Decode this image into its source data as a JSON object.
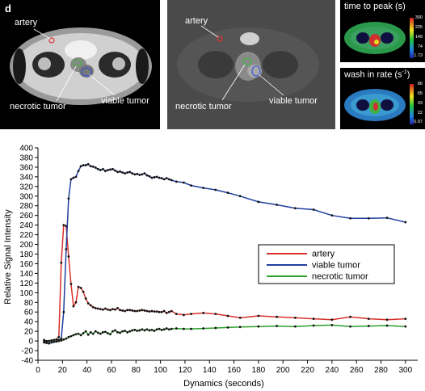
{
  "panel_letter": "d",
  "images": {
    "left": {
      "labels": {
        "artery": "artery",
        "necrotic": "necrotic tumor",
        "viable": "viable tumor"
      }
    },
    "middle": {
      "labels": {
        "artery": "artery",
        "necrotic": "necrotic tumor",
        "viable": "viable tumor"
      }
    },
    "map_top": {
      "title": "time to peak (s)",
      "colorbar_ticks": [
        "300",
        "225",
        "149",
        "74",
        "1.73"
      ]
    },
    "map_bottom": {
      "title_prefix": "wash in rate (s",
      "title_sup": "-1",
      "title_suffix": ")",
      "colorbar_ticks": [
        "86",
        "65",
        "43",
        "22",
        "0.07"
      ]
    }
  },
  "colors": {
    "artery": "#d8312b",
    "viable": "#1f3f9e",
    "necrotic": "#2aa02a",
    "points": "#111111"
  },
  "chart_data": {
    "type": "line",
    "xlabel": "Dynamics (seconds)",
    "ylabel": "Relative Signal Intensity",
    "xlim": [
      0,
      310
    ],
    "ylim": [
      -40,
      400
    ],
    "xticks": [
      0,
      20,
      40,
      60,
      80,
      100,
      120,
      140,
      160,
      180,
      200,
      220,
      240,
      260,
      280,
      300
    ],
    "yticks": [
      -40,
      -20,
      0,
      20,
      40,
      60,
      80,
      100,
      120,
      140,
      160,
      180,
      200,
      220,
      240,
      260,
      280,
      300,
      320,
      340,
      360,
      380,
      400
    ],
    "grid": false,
    "legend_position": "right",
    "series": [
      {
        "name": "artery",
        "x": [
          5,
          7,
          9,
          11,
          13,
          15,
          17,
          19,
          21,
          23,
          25,
          27,
          29,
          31,
          33,
          35,
          37,
          39,
          41,
          43,
          45,
          47,
          49,
          51,
          53,
          55,
          57,
          59,
          61,
          63,
          65,
          67,
          69,
          71,
          73,
          75,
          77,
          79,
          81,
          83,
          85,
          87,
          89,
          91,
          93,
          95,
          97,
          99,
          101,
          103,
          105,
          107,
          109,
          113,
          119,
          125,
          135,
          145,
          155,
          165,
          180,
          195,
          210,
          225,
          240,
          255,
          270,
          285,
          300
        ],
        "y": [
          2,
          0,
          0,
          1,
          2,
          3,
          8,
          162,
          240,
          238,
          175,
          118,
          72,
          80,
          112,
          110,
          102,
          88,
          78,
          74,
          70,
          68,
          67,
          66,
          65,
          67,
          65,
          64,
          66,
          65,
          68,
          64,
          63,
          62,
          64,
          64,
          63,
          62,
          62,
          63,
          64,
          63,
          62,
          61,
          62,
          61,
          61,
          60,
          60,
          62,
          58,
          60,
          62,
          56,
          54,
          56,
          58,
          56,
          52,
          48,
          52,
          50,
          48,
          46,
          44,
          50,
          46,
          44,
          46
        ]
      },
      {
        "name": "viable tumor",
        "x": [
          5,
          7,
          9,
          11,
          13,
          15,
          17,
          19,
          21,
          23,
          25,
          27,
          29,
          31,
          33,
          35,
          37,
          39,
          41,
          43,
          45,
          47,
          49,
          51,
          53,
          55,
          57,
          59,
          61,
          63,
          65,
          67,
          69,
          71,
          73,
          75,
          77,
          79,
          81,
          83,
          85,
          87,
          89,
          91,
          93,
          95,
          97,
          99,
          101,
          103,
          105,
          107,
          109,
          113,
          119,
          125,
          135,
          145,
          155,
          165,
          180,
          195,
          210,
          225,
          240,
          255,
          270,
          285,
          300
        ],
        "y": [
          -3,
          -4,
          -5,
          -3,
          -2,
          -1,
          0,
          5,
          60,
          190,
          295,
          335,
          338,
          340,
          352,
          362,
          364,
          364,
          366,
          362,
          361,
          359,
          356,
          354,
          356,
          352,
          354,
          355,
          356,
          353,
          350,
          351,
          349,
          347,
          349,
          350,
          347,
          345,
          346,
          344,
          345,
          347,
          343,
          341,
          338,
          339,
          340,
          338,
          337,
          335,
          337,
          335,
          333,
          330,
          328,
          322,
          317,
          313,
          307,
          300,
          288,
          282,
          275,
          272,
          260,
          254,
          254,
          255,
          246
        ]
      },
      {
        "name": "necrotic tumor",
        "x": [
          5,
          7,
          9,
          11,
          13,
          15,
          17,
          19,
          21,
          23,
          25,
          27,
          29,
          31,
          33,
          35,
          37,
          39,
          41,
          43,
          45,
          47,
          49,
          51,
          53,
          55,
          57,
          59,
          61,
          63,
          65,
          67,
          69,
          71,
          73,
          75,
          77,
          79,
          81,
          83,
          85,
          87,
          89,
          91,
          93,
          95,
          97,
          99,
          101,
          103,
          105,
          107,
          109,
          113,
          119,
          125,
          135,
          145,
          155,
          165,
          180,
          195,
          210,
          225,
          240,
          255,
          270,
          285,
          300
        ],
        "y": [
          0,
          -1,
          0,
          1,
          2,
          3,
          2,
          1,
          3,
          5,
          8,
          10,
          12,
          14,
          15,
          12,
          16,
          20,
          13,
          18,
          15,
          20,
          17,
          15,
          18,
          19,
          16,
          14,
          20,
          22,
          18,
          17,
          20,
          21,
          18,
          20,
          22,
          23,
          21,
          22,
          24,
          22,
          24,
          22,
          23,
          21,
          24,
          25,
          23,
          24,
          26,
          24,
          25,
          26,
          25,
          25,
          26,
          27,
          28,
          29,
          30,
          31,
          30,
          32,
          33,
          30,
          31,
          32,
          30
        ]
      }
    ]
  }
}
